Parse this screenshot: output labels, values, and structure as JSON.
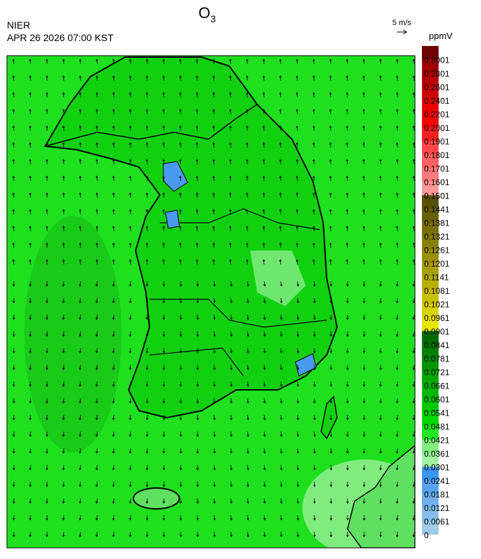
{
  "header": {
    "title": "O",
    "title_sub": "3",
    "agency": "NIER",
    "datetime": "APR 26 2026 07:00 KST",
    "wind_scale": "5 m/s"
  },
  "colorbar": {
    "unit": "ppmV",
    "levels": [
      {
        "value": 0,
        "color": "#a0cbe8"
      },
      {
        "value": 0.0061,
        "color": "#88bdeb"
      },
      {
        "value": 0.0121,
        "color": "#70b0ee"
      },
      {
        "value": 0.0181,
        "color": "#58a3f0"
      },
      {
        "value": 0.0241,
        "color": "#3a95f5"
      },
      {
        "value": 0.0301,
        "color": "#a0f5a0"
      },
      {
        "value": 0.0361,
        "color": "#80f080"
      },
      {
        "value": 0.0421,
        "color": "#20e820"
      },
      {
        "value": 0.0481,
        "color": "#00d800"
      },
      {
        "value": 0.0541,
        "color": "#00c800"
      },
      {
        "value": 0.0601,
        "color": "#00b800"
      },
      {
        "value": 0.0661,
        "color": "#00a800"
      },
      {
        "value": 0.0721,
        "color": "#009400"
      },
      {
        "value": 0.0781,
        "color": "#008000"
      },
      {
        "value": 0.0841,
        "color": "#006c00"
      },
      {
        "value": 0.0901,
        "color": "#e8e400"
      },
      {
        "value": 0.0961,
        "color": "#d8d200"
      },
      {
        "value": 0.1021,
        "color": "#c8c000"
      },
      {
        "value": 0.1081,
        "color": "#b8b000"
      },
      {
        "value": 0.1141,
        "color": "#a8a000"
      },
      {
        "value": 0.1201,
        "color": "#989000"
      },
      {
        "value": 0.1261,
        "color": "#888000"
      },
      {
        "value": 0.1321,
        "color": "#787000"
      },
      {
        "value": 0.1381,
        "color": "#686000"
      },
      {
        "value": 0.1441,
        "color": "#585000"
      },
      {
        "value": 0.1501,
        "color": "#ff9898"
      },
      {
        "value": 0.1601,
        "color": "#ff7c7c"
      },
      {
        "value": 0.1701,
        "color": "#ff6262"
      },
      {
        "value": 0.1801,
        "color": "#ff4848"
      },
      {
        "value": 0.1901,
        "color": "#ff2020"
      },
      {
        "value": 0.2001,
        "color": "#ff0000"
      },
      {
        "value": 0.2201,
        "color": "#e80000"
      },
      {
        "value": 0.2401,
        "color": "#d00000"
      },
      {
        "value": 0.2601,
        "color": "#b80000"
      },
      {
        "value": 0.2801,
        "color": "#a00000"
      },
      {
        "value": 0.3001,
        "color": "#700000"
      }
    ]
  }
}
